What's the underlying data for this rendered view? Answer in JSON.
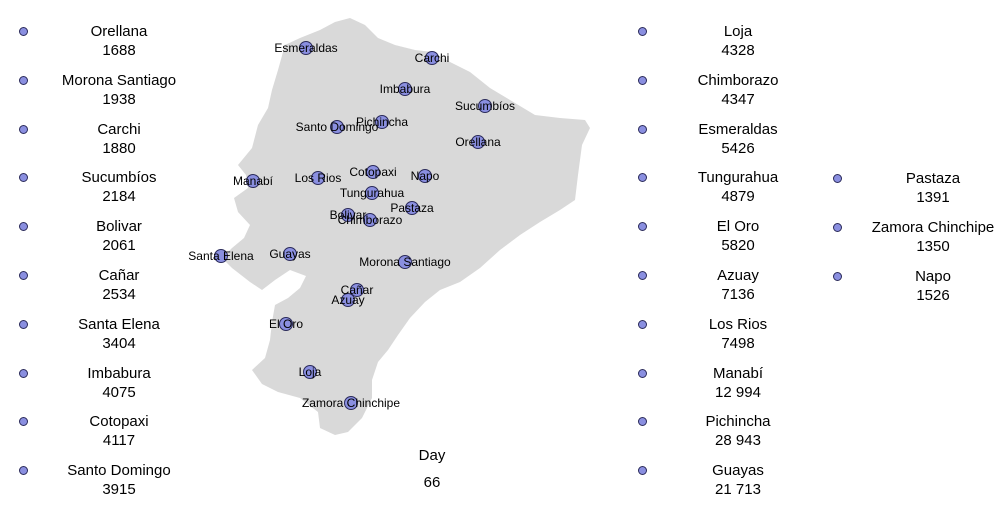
{
  "legend": {
    "col1": [
      {
        "name": "Orellana",
        "value": "1688"
      },
      {
        "name": "Morona Santiago",
        "value": "1938"
      },
      {
        "name": "Carchi",
        "value": "1880"
      },
      {
        "name": "Sucumbíos",
        "value": "2184"
      },
      {
        "name": "Bolivar",
        "value": "2061"
      },
      {
        "name": "Cañar",
        "value": "2534"
      },
      {
        "name": "Santa Elena",
        "value": "3404"
      },
      {
        "name": "Imbabura",
        "value": "4075"
      },
      {
        "name": "Cotopaxi",
        "value": "4117"
      },
      {
        "name": "Santo Domingo",
        "value": "3915"
      }
    ],
    "col2": [
      {
        "name": "Loja",
        "value": "4328"
      },
      {
        "name": "Chimborazo",
        "value": "4347"
      },
      {
        "name": "Esmeraldas",
        "value": "5426"
      },
      {
        "name": "Tungurahua",
        "value": "4879"
      },
      {
        "name": "El Oro",
        "value": "5820"
      },
      {
        "name": "Azuay",
        "value": "7136"
      },
      {
        "name": "Los Rios",
        "value": "7498"
      },
      {
        "name": "Manabí",
        "value": "12 994"
      },
      {
        "name": "Pichincha",
        "value": "28 943"
      },
      {
        "name": "Guayas",
        "value": "21 713"
      }
    ],
    "col3": [
      {
        "name": "Pastaza",
        "value": "1391"
      },
      {
        "name": "Zamora Chinchipe",
        "value": "1350"
      },
      {
        "name": "Napo",
        "value": "1526"
      }
    ]
  },
  "map_labels": [
    "Esmeraldas",
    "Carchi",
    "Imbabura",
    "Sucumbíos",
    "Santo Domingo",
    "Pichincha",
    "Orellana",
    "Manabí",
    "Los Rios",
    "Cotopaxi",
    "Napo",
    "Tungurahua",
    "Pastaza",
    "Bolivar",
    "Chimborazo",
    "Santa Elena",
    "Guayas",
    "Morona Santiago",
    "Cañar",
    "Azuay",
    "El Oro",
    "Loja",
    "Zamora Chinchipe"
  ],
  "footer": {
    "label": "Day",
    "value": "66"
  },
  "colors": {
    "marker_fill": "#8a8fe0",
    "marker_stroke": "#2a2a5a",
    "land": "#d9d9d9"
  }
}
